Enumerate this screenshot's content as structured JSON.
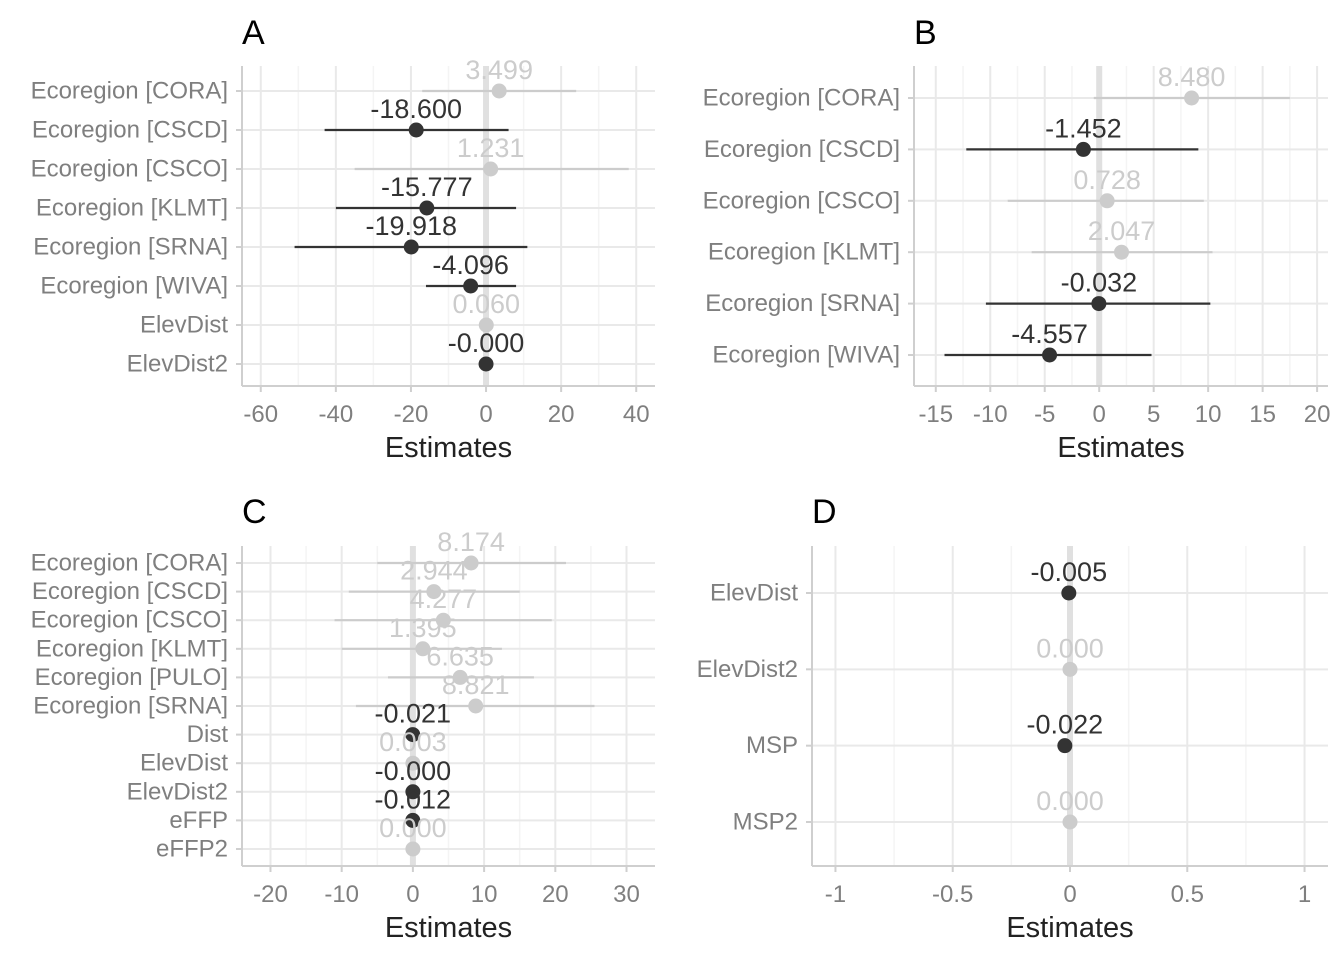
{
  "colors": {
    "significant": "#333333",
    "nonsignificant": "#cccccc",
    "grid_major": "#e9e9e9",
    "grid_minor": "#f4f4f4",
    "axis_line": "#cfcfcf",
    "zero_line": "#e0e0e0",
    "tick_text": "#7f7f7f"
  },
  "chart_data": [
    {
      "panel": "A",
      "type": "scatter",
      "xlabel": "Estimates",
      "xlim": [
        -65,
        45
      ],
      "xticks": [
        -60,
        -40,
        -20,
        0,
        20,
        40
      ],
      "xtick_labels": [
        "-60",
        "-40",
        "-20",
        "0",
        "20",
        "40"
      ],
      "grid": true,
      "terms": [
        "Ecoregion [CORA]",
        "Ecoregion [CSCD]",
        "Ecoregion [CSCO]",
        "Ecoregion [KLMT]",
        "Ecoregion [SRNA]",
        "Ecoregion [WIVA]",
        "ElevDist",
        "ElevDist2"
      ],
      "estimates": [
        3.499,
        -18.6,
        1.231,
        -15.777,
        -19.918,
        -4.096,
        0.06,
        0.0
      ],
      "labels": [
        "3.499",
        "-18.600",
        "1.231",
        "-15.777",
        "-19.918",
        "-4.096",
        "0.060",
        "-0.000"
      ],
      "conf_low": [
        -17,
        -43,
        -35,
        -40,
        -51,
        -16,
        0.06,
        0.0
      ],
      "conf_high": [
        24,
        6,
        38,
        8,
        11,
        8,
        0.06,
        0.0
      ],
      "significant": [
        false,
        true,
        false,
        true,
        true,
        true,
        false,
        true
      ]
    },
    {
      "panel": "B",
      "type": "scatter",
      "xlabel": "Estimates",
      "xlim": [
        -17,
        21
      ],
      "xticks": [
        -15,
        -10,
        -5,
        0,
        5,
        10,
        15,
        20
      ],
      "xtick_labels": [
        "-15",
        "-10",
        "-5",
        "0",
        "5",
        "10",
        "15",
        "20"
      ],
      "grid": true,
      "terms": [
        "Ecoregion [CORA]",
        "Ecoregion [CSCD]",
        "Ecoregion [CSCO]",
        "Ecoregion [KLMT]",
        "Ecoregion [SRNA]",
        "Ecoregion [WIVA]"
      ],
      "estimates": [
        8.48,
        -1.452,
        0.728,
        2.047,
        -0.032,
        -4.557
      ],
      "labels": [
        "8.480",
        "-1.452",
        "0.728",
        "2.047",
        "-0.032",
        "-4.557"
      ],
      "conf_low": [
        -0.5,
        -12.2,
        -8.4,
        -6.2,
        -10.4,
        -14.2
      ],
      "conf_high": [
        17.5,
        9.1,
        9.6,
        10.4,
        10.2,
        4.8
      ],
      "significant": [
        false,
        true,
        false,
        false,
        true,
        true
      ]
    },
    {
      "panel": "C",
      "type": "scatter",
      "xlabel": "Estimates",
      "xlim": [
        -24,
        34
      ],
      "xticks": [
        -20,
        -10,
        0,
        10,
        20,
        30
      ],
      "xtick_labels": [
        "-20",
        "-10",
        "0",
        "10",
        "20",
        "30"
      ],
      "grid": true,
      "terms": [
        "Ecoregion [CORA]",
        "Ecoregion [CSCD]",
        "Ecoregion [CSCO]",
        "Ecoregion [KLMT]",
        "Ecoregion [PULO]",
        "Ecoregion [SRNA]",
        "Dist",
        "ElevDist",
        "ElevDist2",
        "eFFP",
        "eFFP2"
      ],
      "estimates": [
        8.174,
        2.944,
        4.277,
        1.395,
        6.635,
        8.821,
        -0.021,
        0.003,
        -0.0,
        -0.012,
        0.0
      ],
      "labels": [
        "8.174",
        "2.944",
        "4.277",
        "1.395",
        "6.635",
        "8.821",
        "-0.021",
        "0.003",
        "-0.000",
        "-0.012",
        "0.000"
      ],
      "conf_low": [
        -5,
        -9,
        -11,
        -10,
        -3.5,
        -8,
        -0.021,
        0.003,
        0.0,
        -0.012,
        0.0
      ],
      "conf_high": [
        21.5,
        15,
        19.5,
        12.5,
        17,
        25.5,
        -0.021,
        0.003,
        0.0,
        -0.012,
        0.0
      ],
      "significant": [
        false,
        false,
        false,
        false,
        false,
        false,
        true,
        false,
        true,
        true,
        false
      ]
    },
    {
      "panel": "D",
      "type": "scatter",
      "xlabel": "Estimates",
      "xlim": [
        -1.1,
        1.1
      ],
      "xticks": [
        -1,
        -0.5,
        0,
        0.5,
        1
      ],
      "xtick_labels": [
        "-1",
        "-0.5",
        "0",
        "0.5",
        "1"
      ],
      "grid": true,
      "terms": [
        "ElevDist",
        "ElevDist2",
        "MSP",
        "MSP2"
      ],
      "estimates": [
        -0.005,
        0.0,
        -0.022,
        0.0
      ],
      "labels": [
        "-0.005",
        "0.000",
        "-0.022",
        "0.000"
      ],
      "conf_low": [
        -0.005,
        0.0,
        -0.022,
        0.0
      ],
      "conf_high": [
        -0.005,
        0.0,
        -0.022,
        0.0
      ],
      "significant": [
        true,
        false,
        true,
        false
      ]
    }
  ]
}
